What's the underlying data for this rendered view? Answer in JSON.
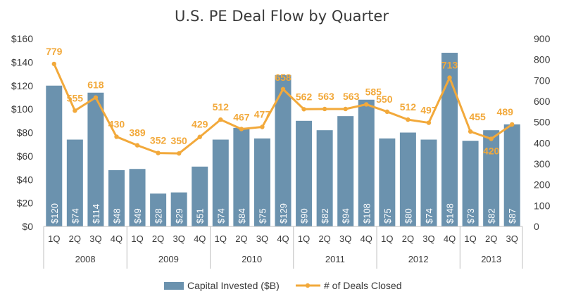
{
  "chart_data": {
    "type": "bar",
    "title": "U.S. PE Deal Flow by Quarter",
    "categories": [
      "1Q",
      "2Q",
      "3Q",
      "4Q",
      "1Q",
      "2Q",
      "3Q",
      "4Q",
      "1Q",
      "2Q",
      "3Q",
      "4Q",
      "1Q",
      "2Q",
      "3Q",
      "4Q",
      "1Q",
      "2Q",
      "3Q",
      "4Q",
      "1Q",
      "2Q",
      "3Q"
    ],
    "years": [
      {
        "label": "2008",
        "start": 0,
        "end": 3
      },
      {
        "label": "2009",
        "start": 4,
        "end": 7
      },
      {
        "label": "2010",
        "start": 8,
        "end": 11
      },
      {
        "label": "2011",
        "start": 12,
        "end": 15
      },
      {
        "label": "2012",
        "start": 16,
        "end": 19
      },
      {
        "label": "2013",
        "start": 20,
        "end": 22
      }
    ],
    "series": [
      {
        "name": "Capital Invested ($B)",
        "type": "bar",
        "axis": "left",
        "color": "#6B92AE",
        "values": [
          120,
          74,
          114,
          48,
          49,
          28,
          29,
          51,
          74,
          84,
          75,
          129,
          90,
          82,
          94,
          108,
          75,
          80,
          74,
          148,
          73,
          82,
          87
        ],
        "labels": [
          "$120",
          "$74",
          "$114",
          "$48",
          "$49",
          "$28",
          "$29",
          "$51",
          "$74",
          "$84",
          "$75",
          "$129",
          "$90",
          "$82",
          "$94",
          "$108",
          "$75",
          "$80",
          "$74",
          "$148",
          "$73",
          "$82",
          "$87"
        ]
      },
      {
        "name": "# of Deals Closed",
        "type": "line",
        "axis": "right",
        "color": "#F2A93B",
        "values": [
          779,
          555,
          618,
          430,
          389,
          352,
          350,
          429,
          512,
          467,
          477,
          658,
          562,
          563,
          563,
          585,
          550,
          512,
          497,
          713,
          455,
          420,
          489
        ]
      }
    ],
    "left_axis": {
      "min": 0,
      "max": 160,
      "step": 20,
      "ticks": [
        "$0",
        "$20",
        "$40",
        "$60",
        "$80",
        "$100",
        "$120",
        "$140",
        "$160"
      ]
    },
    "right_axis": {
      "min": 0,
      "max": 900,
      "step": 100,
      "ticks": [
        "0",
        "100",
        "200",
        "300",
        "400",
        "500",
        "600",
        "700",
        "800",
        "900"
      ]
    },
    "legend_position": "bottom"
  }
}
